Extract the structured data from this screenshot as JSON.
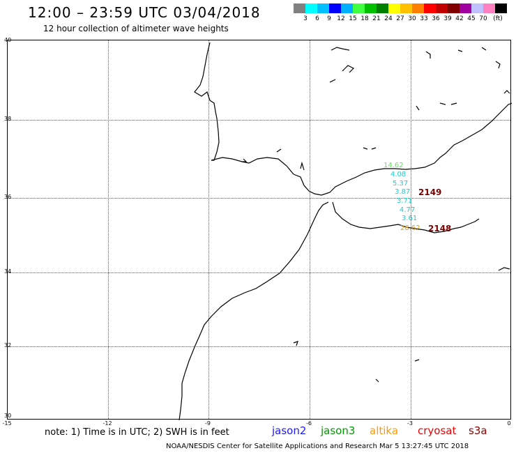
{
  "header": {
    "title": "12:00 – 23:59 UTC 03/04/2018",
    "subtitle": "12 hour collection of altimeter wave heights"
  },
  "color_scale": {
    "colors": [
      "#808080",
      "#00ffff",
      "#00bfff",
      "#0000ff",
      "#00b0ff",
      "#40ff40",
      "#00c000",
      "#008000",
      "#ffff00",
      "#ffc000",
      "#ff8000",
      "#ff0000",
      "#c00000",
      "#800000",
      "#a000a0",
      "#c0c0ff",
      "#ff80c0",
      "#000000"
    ],
    "labels": [
      "3",
      "6",
      "9",
      "12",
      "15",
      "18",
      "21",
      "24",
      "27",
      "30",
      "33",
      "36",
      "39",
      "42",
      "45",
      "70",
      "(ft)"
    ]
  },
  "axes": {
    "lat_labels": [
      "40",
      "38",
      "36",
      "34",
      "32",
      "30"
    ],
    "lon_labels": [
      "-15",
      "-12",
      "-9",
      "-6",
      "-3",
      "0"
    ]
  },
  "observations": {
    "wave_heights": [
      {
        "value": "14.62",
        "color": "#66dd66"
      },
      {
        "value": "4.08",
        "color": "#22cccc"
      },
      {
        "value": "5.37",
        "color": "#22cccc"
      },
      {
        "value": "3.87",
        "color": "#22cccc"
      },
      {
        "value": "3.71",
        "color": "#22cccc"
      },
      {
        "value": "4.77",
        "color": "#22cccc"
      },
      {
        "value": "3.61",
        "color": "#22cccc"
      },
      {
        "value": "28.62",
        "color": "#e89a00"
      }
    ],
    "passes": [
      "2149",
      "2148"
    ]
  },
  "footer": {
    "note": "note: 1) Time is in UTC; 2) SWH is in feet",
    "legend": [
      {
        "name": "jason2",
        "color": "#1a1aff"
      },
      {
        "name": "jason3",
        "color": "#009900"
      },
      {
        "name": "altika",
        "color": "#ff9900"
      },
      {
        "name": "cryosat",
        "color": "#ee0000"
      },
      {
        "name": "s3a",
        "color": "#880000"
      }
    ],
    "credit": "NOAA/NESDIS Center for Satellite Applications and Research    Mar  5 13:27:45 UTC 2018"
  }
}
